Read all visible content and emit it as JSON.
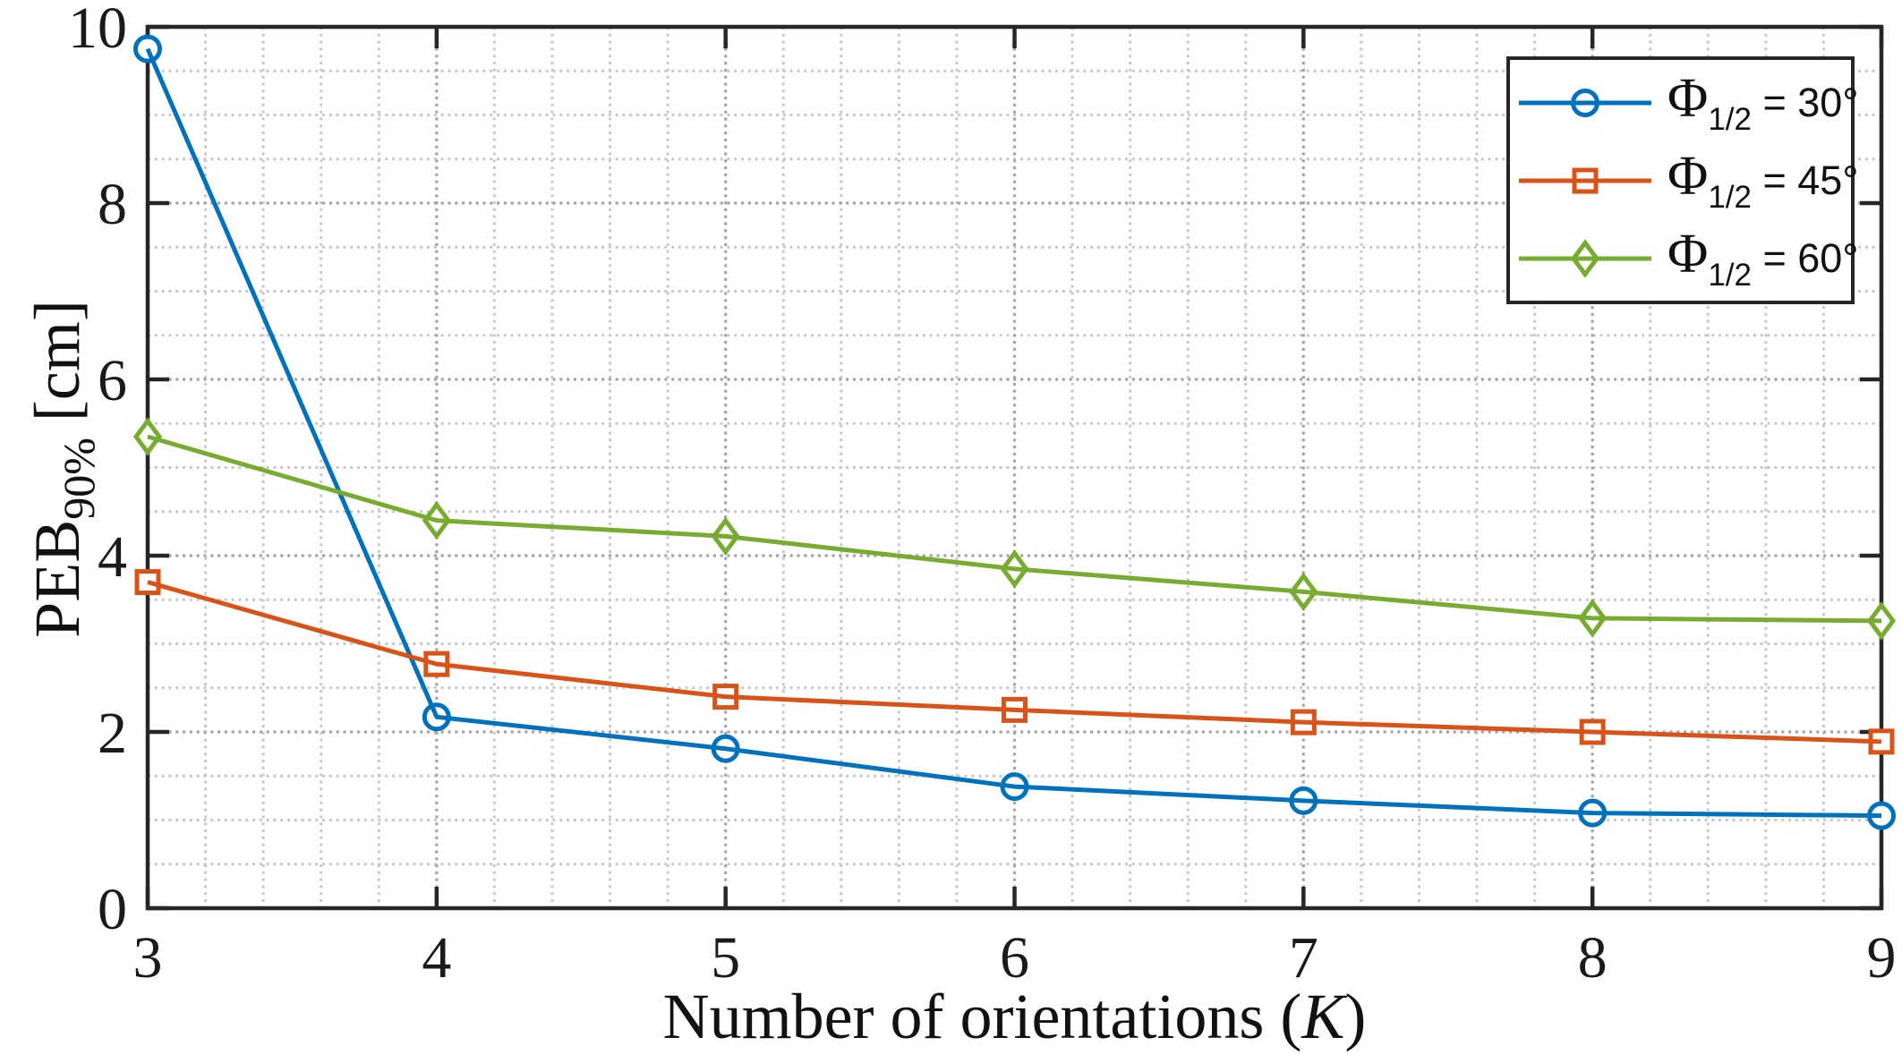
{
  "chart_data": {
    "type": "line",
    "title": "",
    "xlabel": "Number of orientations (K)",
    "ylabel": "PEB_90% [cm]",
    "xlim": [
      3,
      9
    ],
    "ylim": [
      0,
      10
    ],
    "x_ticks": [
      3,
      4,
      5,
      6,
      7,
      8,
      9
    ],
    "y_ticks": [
      0,
      2,
      4,
      6,
      8,
      10
    ],
    "x_minor_step": 0.2,
    "y_minor_step": 0.5,
    "grid": "major and minor, dotted",
    "legend_position": "top-right",
    "x": [
      3,
      4,
      5,
      6,
      7,
      8,
      9
    ],
    "series": [
      {
        "id": "phi-30",
        "name": "Φ_1/2 = 30°",
        "label_phi": "Φ",
        "label_sub": "1/2",
        "label_eq": " = 30°",
        "marker": "circle",
        "color": "#0072BD",
        "values": [
          9.75,
          2.17,
          1.81,
          1.38,
          1.22,
          1.08,
          1.05
        ]
      },
      {
        "id": "phi-45",
        "name": "Φ_1/2 = 45°",
        "label_phi": "Φ",
        "label_sub": "1/2",
        "label_eq": " = 45°",
        "marker": "square",
        "color": "#D95319",
        "values": [
          3.7,
          2.77,
          2.4,
          2.25,
          2.11,
          2.0,
          1.89
        ]
      },
      {
        "id": "phi-60",
        "name": "Φ_1/2 = 60°",
        "label_phi": "Φ",
        "label_sub": "1/2",
        "label_eq": " = 60°",
        "marker": "diamond",
        "color": "#77AC30",
        "values": [
          5.35,
          4.4,
          4.22,
          3.85,
          3.59,
          3.29,
          3.26
        ]
      }
    ]
  },
  "labels": {
    "xlabel_parts": {
      "pre": "Number of orientations (",
      "k": "K",
      "post": ")"
    },
    "ylabel_parts": {
      "base": "PEB",
      "sub": "90%",
      "rest": " [cm]"
    }
  },
  "style": {
    "background": "#ffffff",
    "axis_color": "#262626",
    "text_color": "#1a1a1a",
    "grid_major_color": "#a6a6a6",
    "grid_minor_color": "#c9c9c9",
    "marker_face": "#ffffff"
  }
}
